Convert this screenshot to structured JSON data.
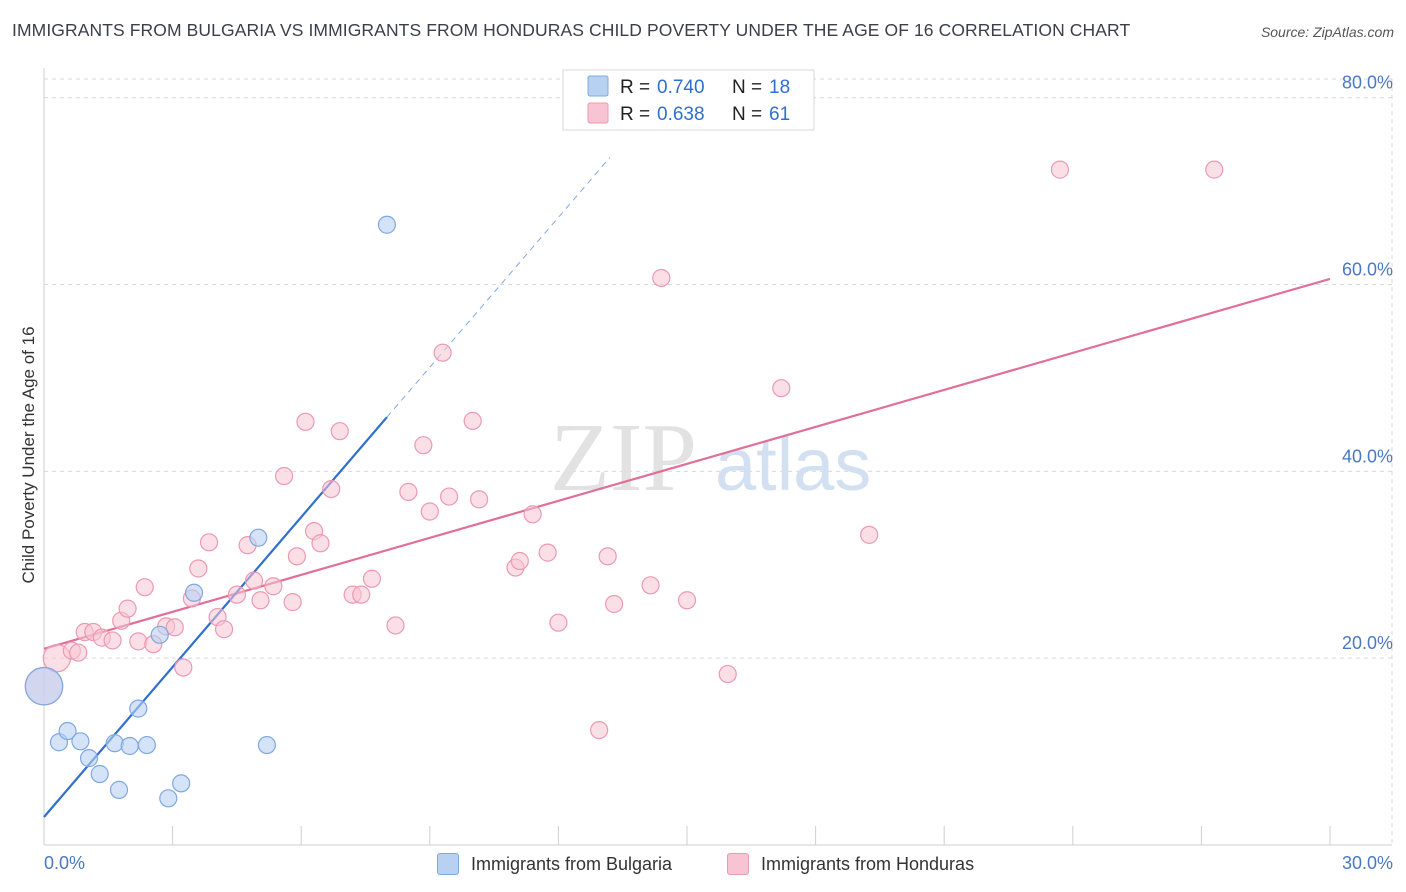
{
  "title": "IMMIGRANTS FROM BULGARIA VS IMMIGRANTS FROM HONDURAS CHILD POVERTY UNDER THE AGE OF 16 CORRELATION CHART",
  "source": "Source: ZipAtlas.com",
  "watermark": {
    "zip": "ZIP",
    "atlas": "atlas"
  },
  "colors": {
    "bulgaria_fill": "#b8d1f3",
    "bulgaria_stroke": "#7fa8e0",
    "bulgaria_line": "#2f6fce",
    "honduras_fill": "#f8c4d3",
    "honduras_stroke": "#ec99b3",
    "honduras_line": "#e0709a",
    "tick": "#4a78c2",
    "grid": "#d9d9d9"
  },
  "legend": {
    "rows": [
      {
        "r_label": "R =",
        "r_value": "0.740",
        "n_label": "N =",
        "n_value": "18"
      },
      {
        "r_label": "R =",
        "r_value": "0.638",
        "n_label": "N =",
        "n_value": "61"
      }
    ]
  },
  "bottom_legend": [
    "Immigrants from Bulgaria",
    "Immigrants from Honduras"
  ],
  "chart_data": {
    "type": "scatter",
    "title": "IMMIGRANTS FROM BULGARIA VS IMMIGRANTS FROM HONDURAS CHILD POVERTY UNDER THE AGE OF 16 CORRELATION CHART",
    "xlabel": "",
    "ylabel": "Child Poverty Under the Age of 16",
    "xlim": [
      0,
      30
    ],
    "ylim": [
      0,
      82
    ],
    "x_ticks": [
      "0.0%",
      "30.0%"
    ],
    "y_ticks": [
      {
        "value": 20,
        "label": "20.0%"
      },
      {
        "value": 40,
        "label": "40.0%"
      },
      {
        "value": 60,
        "label": "60.0%"
      },
      {
        "value": 80,
        "label": "80.0%"
      }
    ],
    "grid": true,
    "legend_position": "top-center",
    "series": [
      {
        "name": "Immigrants from Bulgaria",
        "R": 0.74,
        "N": 18,
        "trend": {
          "x": [
            0,
            8.0
          ],
          "y": [
            3.0,
            45.8
          ],
          "extend_to": {
            "x": 13.2,
            "y": 73.6
          }
        },
        "points": [
          {
            "x": 0.0,
            "y": 17.0,
            "size": 2.2
          },
          {
            "x": 0.35,
            "y": 11.0
          },
          {
            "x": 0.55,
            "y": 12.2
          },
          {
            "x": 0.85,
            "y": 11.1
          },
          {
            "x": 1.05,
            "y": 9.3
          },
          {
            "x": 1.3,
            "y": 7.6
          },
          {
            "x": 1.65,
            "y": 10.9
          },
          {
            "x": 1.75,
            "y": 5.9
          },
          {
            "x": 2.0,
            "y": 10.6
          },
          {
            "x": 2.2,
            "y": 14.6
          },
          {
            "x": 2.4,
            "y": 10.7
          },
          {
            "x": 2.7,
            "y": 22.5
          },
          {
            "x": 2.9,
            "y": 5.0
          },
          {
            "x": 3.2,
            "y": 6.6
          },
          {
            "x": 3.5,
            "y": 27.0
          },
          {
            "x": 5.0,
            "y": 32.9
          },
          {
            "x": 5.2,
            "y": 10.7
          },
          {
            "x": 8.0,
            "y": 66.4
          }
        ]
      },
      {
        "name": "Immigrants from Honduras",
        "R": 0.638,
        "N": 61,
        "trend": {
          "x": [
            0,
            30
          ],
          "y": [
            21.0,
            60.6
          ]
        },
        "points": [
          {
            "x": 0.0,
            "y": 17.0,
            "size": 2.2
          },
          {
            "x": 0.3,
            "y": 20.0,
            "size": 1.6
          },
          {
            "x": 0.65,
            "y": 20.8
          },
          {
            "x": 0.8,
            "y": 20.6
          },
          {
            "x": 0.95,
            "y": 22.8
          },
          {
            "x": 1.15,
            "y": 22.8
          },
          {
            "x": 1.35,
            "y": 22.2
          },
          {
            "x": 1.6,
            "y": 21.9
          },
          {
            "x": 1.8,
            "y": 24.0
          },
          {
            "x": 1.95,
            "y": 25.3
          },
          {
            "x": 2.2,
            "y": 21.8
          },
          {
            "x": 2.35,
            "y": 27.6
          },
          {
            "x": 2.55,
            "y": 21.5
          },
          {
            "x": 2.85,
            "y": 23.4
          },
          {
            "x": 3.05,
            "y": 23.3
          },
          {
            "x": 3.25,
            "y": 19.0
          },
          {
            "x": 3.45,
            "y": 26.4
          },
          {
            "x": 3.6,
            "y": 29.6
          },
          {
            "x": 3.85,
            "y": 32.4
          },
          {
            "x": 4.05,
            "y": 24.4
          },
          {
            "x": 4.2,
            "y": 23.1
          },
          {
            "x": 4.5,
            "y": 26.8
          },
          {
            "x": 4.75,
            "y": 32.1
          },
          {
            "x": 4.9,
            "y": 28.3
          },
          {
            "x": 5.05,
            "y": 26.2
          },
          {
            "x": 5.35,
            "y": 27.7
          },
          {
            "x": 5.6,
            "y": 39.5
          },
          {
            "x": 5.8,
            "y": 26.0
          },
          {
            "x": 5.9,
            "y": 30.9
          },
          {
            "x": 6.1,
            "y": 45.3
          },
          {
            "x": 6.3,
            "y": 33.6
          },
          {
            "x": 6.45,
            "y": 32.3
          },
          {
            "x": 6.7,
            "y": 38.1
          },
          {
            "x": 6.9,
            "y": 44.3
          },
          {
            "x": 7.2,
            "y": 26.8
          },
          {
            "x": 7.4,
            "y": 26.8
          },
          {
            "x": 7.65,
            "y": 28.5
          },
          {
            "x": 8.2,
            "y": 23.5
          },
          {
            "x": 8.5,
            "y": 37.8
          },
          {
            "x": 8.85,
            "y": 42.8
          },
          {
            "x": 9.0,
            "y": 35.7
          },
          {
            "x": 9.3,
            "y": 52.7
          },
          {
            "x": 9.45,
            "y": 37.3
          },
          {
            "x": 10.0,
            "y": 45.4
          },
          {
            "x": 10.15,
            "y": 37.0
          },
          {
            "x": 11.0,
            "y": 29.7
          },
          {
            "x": 11.1,
            "y": 30.4
          },
          {
            "x": 11.4,
            "y": 35.4
          },
          {
            "x": 11.75,
            "y": 31.3
          },
          {
            "x": 12.0,
            "y": 23.8
          },
          {
            "x": 12.95,
            "y": 12.3
          },
          {
            "x": 13.15,
            "y": 30.9
          },
          {
            "x": 13.3,
            "y": 25.8
          },
          {
            "x": 14.15,
            "y": 27.8
          },
          {
            "x": 14.4,
            "y": 60.7
          },
          {
            "x": 15.0,
            "y": 26.2
          },
          {
            "x": 15.95,
            "y": 18.3
          },
          {
            "x": 17.2,
            "y": 48.9
          },
          {
            "x": 19.25,
            "y": 33.2
          },
          {
            "x": 23.7,
            "y": 72.3
          },
          {
            "x": 27.3,
            "y": 72.3
          }
        ]
      }
    ]
  }
}
